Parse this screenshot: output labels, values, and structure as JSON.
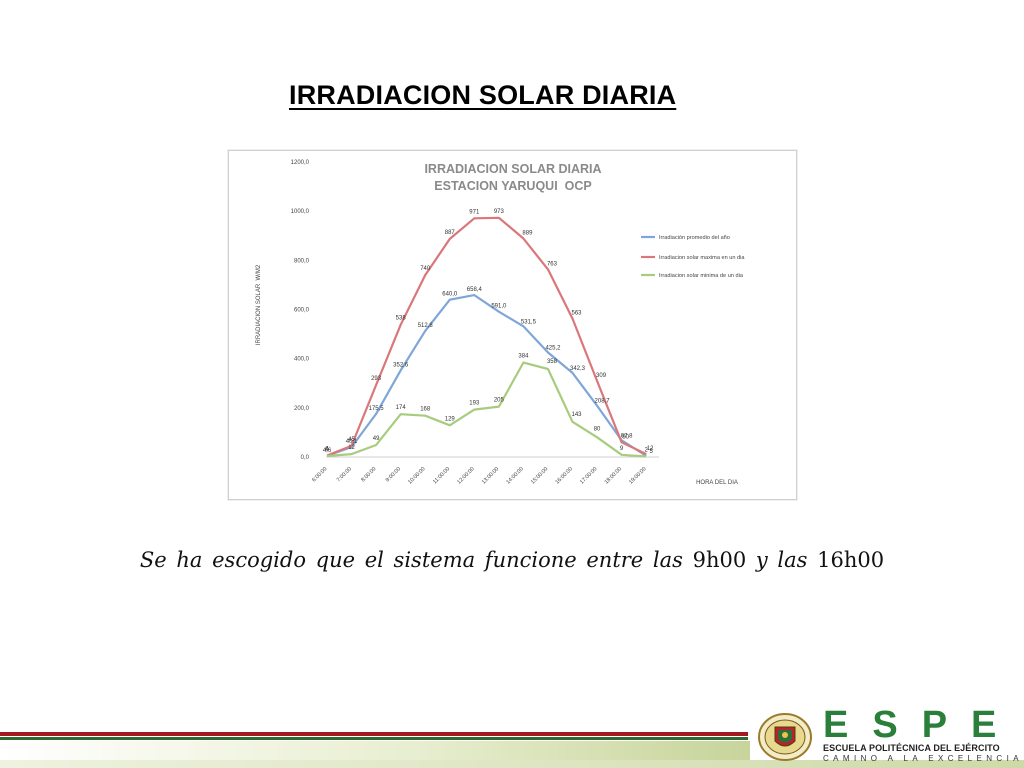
{
  "slide": {
    "title": "IRRADIACION SOLAR DIARIA",
    "caption_italic_1": "Se  ha escogido que el sistema funcione entre las ",
    "caption_upright_1": "9h00",
    "caption_italic_2": " y las ",
    "caption_upright_2": "16h00"
  },
  "footer": {
    "logo_text": "ESPE",
    "logo_subtitle": "ESCUELA POLITÉCNICA DEL EJÉRCITO",
    "logo_motto": "CAMINO A LA EXCELENCIA",
    "colors": {
      "red": "#a31a1e",
      "green": "#2a7f3b"
    }
  },
  "chart_data": {
    "type": "line",
    "title": "IRRADIACION SOLAR DIARIA",
    "subtitle": "ESTACION YARUQUI  OCP",
    "xlabel": "HORA DEL DIA",
    "ylabel": "IRRADIACION SOLAR  W/M2",
    "ylim": [
      0,
      1200
    ],
    "y_ticks": [
      "0,0",
      "200,0",
      "400,0",
      "600,0",
      "800,0",
      "1000,0",
      "1200,0"
    ],
    "categories": [
      "6:00:00",
      "7:00:00",
      "8:00:00",
      "9:00:00",
      "10:00:00",
      "11:00:00",
      "12:00:00",
      "13:00:00",
      "14:00:00",
      "15:00:00",
      "16:00:00",
      "17:00:00",
      "18:00:00",
      "19:00:00"
    ],
    "legend_position": "right",
    "grid": false,
    "series": [
      {
        "name": "Irradiación promedio del año",
        "color": "#7ea6d8",
        "values": [
          4.6,
          40.1,
          175.5,
          352.6,
          512.8,
          640.0,
          658.4,
          591.0,
          531.5,
          425.2,
          342.3,
          208.7,
          67.8,
          5.0
        ],
        "labels": [
          "4,6",
          "40,1",
          "175,5",
          "352,6",
          "512,8",
          "640,0",
          "658,4",
          "591,0",
          "531,5",
          "425,2",
          "342,3",
          "208,7",
          "67,8",
          "5"
        ]
      },
      {
        "name": "Irradiacion solar maxima en un dia",
        "color": "#d9777a",
        "values": [
          6,
          45,
          293,
          538,
          740,
          887,
          971,
          973,
          889,
          763,
          563,
          309,
          60,
          12
        ],
        "labels": [
          "6",
          "45",
          "293",
          "538",
          "740",
          "887",
          "971",
          "973",
          "889",
          "763",
          "563",
          "309",
          "60",
          "12"
        ]
      },
      {
        "name": "Irradiacion solar minima de un dia",
        "color": "#a8cc7e",
        "values": [
          4,
          12,
          49,
          174,
          168,
          129,
          193,
          205,
          384,
          358,
          143,
          80,
          9,
          2
        ],
        "labels": [
          "4",
          "12",
          "49",
          "174",
          "168",
          "129",
          "193",
          "205",
          "384",
          "358",
          "143",
          "80",
          "9",
          "2"
        ]
      }
    ]
  }
}
